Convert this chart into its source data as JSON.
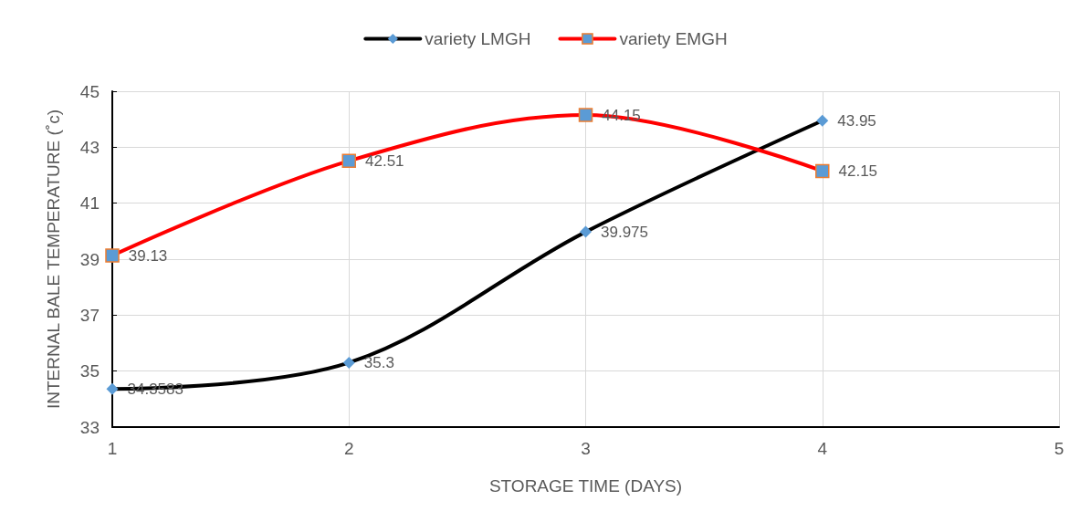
{
  "chart_data": {
    "type": "line",
    "xlabel": "STORAGE TIME (DAYS)",
    "ylabel": "INTERNAL BALE TEMPERATURE (˚c)",
    "x": [
      1,
      2,
      3,
      4
    ],
    "xlim": [
      1,
      5
    ],
    "xticks": [
      1,
      2,
      3,
      4,
      5
    ],
    "ylim": [
      33,
      45
    ],
    "yticks": [
      33,
      35,
      37,
      39,
      41,
      43,
      45
    ],
    "series": [
      {
        "name": "variety LMGH",
        "color": "#000000",
        "marker": "diamond",
        "values": [
          34.3583,
          35.3,
          39.975,
          43.95
        ]
      },
      {
        "name": "variety EMGH",
        "color": "#ff0000",
        "marker": "square",
        "values": [
          39.13,
          42.51,
          44.15,
          42.15
        ]
      }
    ],
    "data_labels": true,
    "grid": true,
    "legend": "top",
    "line_style": "solid"
  }
}
